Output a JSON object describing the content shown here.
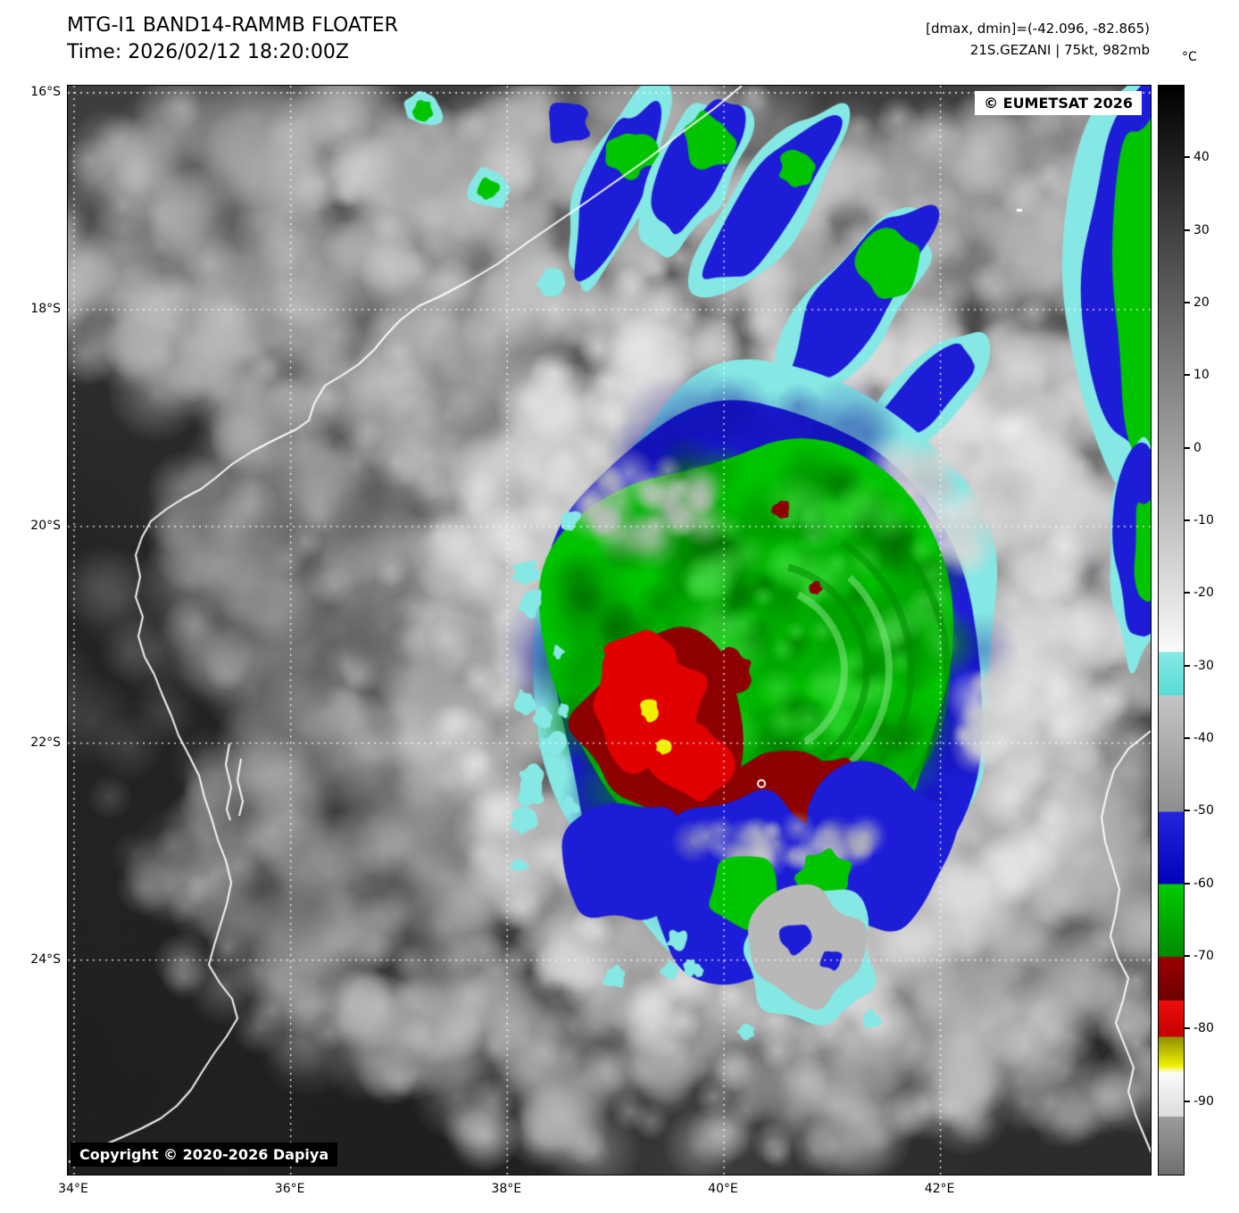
{
  "header": {
    "title": "MTG-I1 BAND14-RAMMB FLOATER",
    "time": "Time: 2026/02/12 18:20:00Z",
    "dmax_dmin": "[dmax, dmin]=(-42.096, -82.865)",
    "storm": "21S.GEZANI | 75kt, 982mb"
  },
  "badges": {
    "eumetsat": "© EUMETSAT 2026",
    "copyright": "Copyright © 2020-2026 Dapiya"
  },
  "axes": {
    "lat": [
      {
        "label": "16°S",
        "deg": 16
      },
      {
        "label": "18°S",
        "deg": 18
      },
      {
        "label": "20°S",
        "deg": 20
      },
      {
        "label": "22°S",
        "deg": 22
      },
      {
        "label": "24°S",
        "deg": 24
      }
    ],
    "lon": [
      {
        "label": "34°E",
        "deg": 34
      },
      {
        "label": "36°E",
        "deg": 36
      },
      {
        "label": "38°E",
        "deg": 38
      },
      {
        "label": "40°E",
        "deg": 40
      },
      {
        "label": "42°E",
        "deg": 42
      }
    ]
  },
  "colorbar": {
    "unit": "°C",
    "ticks": [
      40,
      30,
      20,
      10,
      0,
      -10,
      -20,
      -30,
      -40,
      -50,
      -60,
      -70,
      -80,
      -90
    ],
    "domain": [
      50,
      -100
    ],
    "stops": [
      [
        50,
        "#000000"
      ],
      [
        -28,
        "#fafafa"
      ],
      [
        -28,
        "#86e8e4"
      ],
      [
        -34,
        "#5adcd8"
      ],
      [
        -34,
        "#c4c4c4"
      ],
      [
        -50,
        "#8e8e8e"
      ],
      [
        -50,
        "#2424de"
      ],
      [
        -60,
        "#0202bc"
      ],
      [
        -60,
        "#00cc00"
      ],
      [
        -70,
        "#008a00"
      ],
      [
        -70,
        "#9a0000"
      ],
      [
        -76,
        "#6e0000"
      ],
      [
        -76,
        "#ee0e0e"
      ],
      [
        -81,
        "#c40000"
      ],
      [
        -81,
        "#8e8e00"
      ],
      [
        -85,
        "#f0f000"
      ],
      [
        -86,
        "#fbfbfb"
      ],
      [
        -92,
        "#dcdcdc"
      ],
      [
        -92,
        "#9c9c9c"
      ],
      [
        -100,
        "#6f6f6f"
      ]
    ]
  },
  "palette": {
    "cyan": "#86e8e4",
    "blue": "#1d1dd8",
    "blue_dark": "#0a0aa0",
    "green": "#00c400",
    "green_dark": "#008a00",
    "red": "#e00000",
    "red_dark": "#8c0000",
    "yellow": "#f0f000",
    "coast": "#ffffff",
    "grid": "#ffffff"
  },
  "chart_data": {
    "type": "heatmap",
    "title": "MTG-I1 BAND14-RAMMB FLOATER",
    "time_utc": "2026/02/12 18:20:00Z",
    "band": "BAND14 (infrared brightness temperature)",
    "storm": {
      "id": "21S",
      "name": "GEZANI",
      "intensity_kt": 75,
      "pressure_mb": 982
    },
    "dmax_c": -42.096,
    "dmin_c": -82.865,
    "colorbar_unit": "°C",
    "colorbar_ticks_c": [
      40,
      30,
      20,
      10,
      0,
      -10,
      -20,
      -30,
      -40,
      -50,
      -60,
      -70,
      -80,
      -90
    ],
    "lat_ticks": [
      "16°S",
      "18°S",
      "20°S",
      "22°S",
      "24°S"
    ],
    "lon_ticks": [
      "34°E",
      "36°E",
      "38°E",
      "40°E",
      "42°E"
    ],
    "legend_position": "right colorbar",
    "grid": "dotted white lat/lon graticule"
  }
}
